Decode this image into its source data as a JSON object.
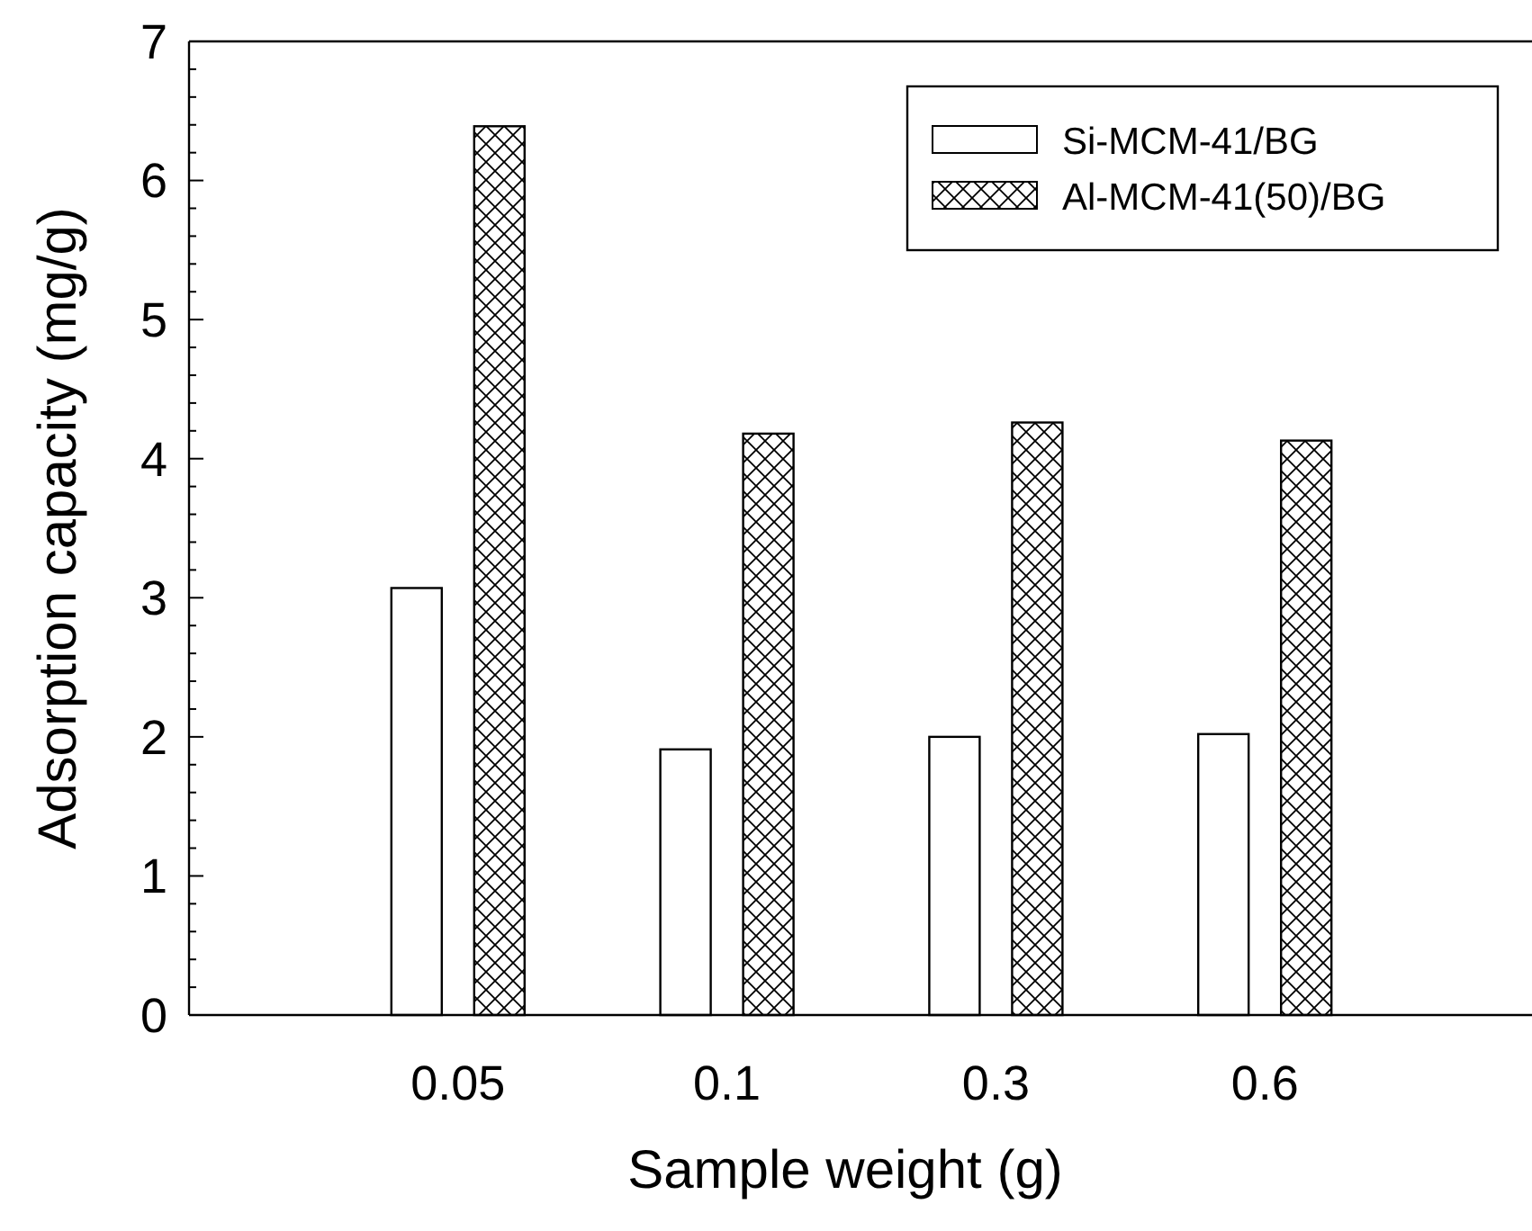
{
  "chart_data": {
    "type": "bar",
    "xlabel": "Sample weight (g)",
    "ylabel": "Adsorption capacity (mg/g)",
    "categories": [
      "0.05",
      "0.1",
      "0.3",
      "0.6"
    ],
    "series": [
      {
        "name": "Si-MCM-41/BG",
        "color": "#ffffff",
        "values": [
          3.07,
          1.91,
          2.0,
          2.02
        ]
      },
      {
        "name": "Al-MCM-41(50)/BG",
        "color": "#000000",
        "values": [
          6.39,
          4.18,
          4.26,
          4.13
        ]
      }
    ],
    "ylim": [
      0,
      7
    ],
    "yticks": [
      0,
      {
        "value": 0.2,
        "label": null
      },
      {
        "value": 0.4,
        "label": null
      },
      {
        "value": 0.6,
        "label": null
      },
      {
        "value": 0.8,
        "label": null
      },
      1,
      {
        "value": 1.2,
        "label": null
      },
      {
        "value": 1.4,
        "label": null
      },
      {
        "value": 1.6,
        "label": null
      },
      {
        "value": 1.8,
        "label": null
      },
      2,
      {
        "value": 2.2,
        "label": null
      },
      {
        "value": 2.4,
        "label": null
      },
      {
        "value": 2.6,
        "label": null
      },
      {
        "value": 2.8,
        "label": null
      },
      3,
      {
        "value": 3.2,
        "label": null
      },
      {
        "value": 3.4,
        "label": null
      },
      {
        "value": 3.6,
        "label": null
      },
      {
        "value": 3.8,
        "label": null
      },
      4,
      {
        "value": 4.2,
        "label": null
      },
      {
        "value": 4.4,
        "label": null
      },
      {
        "value": 4.6,
        "label": null
      },
      {
        "value": 4.8,
        "label": null
      },
      5,
      {
        "value": 5.2,
        "label": null
      },
      {
        "value": 5.4,
        "label": null
      },
      {
        "value": 5.6,
        "label": null
      },
      {
        "value": 5.8,
        "label": null
      },
      6,
      {
        "value": 6.2,
        "label": null
      },
      {
        "value": 6.4,
        "label": null
      },
      {
        "value": 6.6,
        "label": null
      },
      {
        "value": 6.8,
        "label": null
      },
      7
    ],
    "grid": false,
    "legend": "top right"
  }
}
